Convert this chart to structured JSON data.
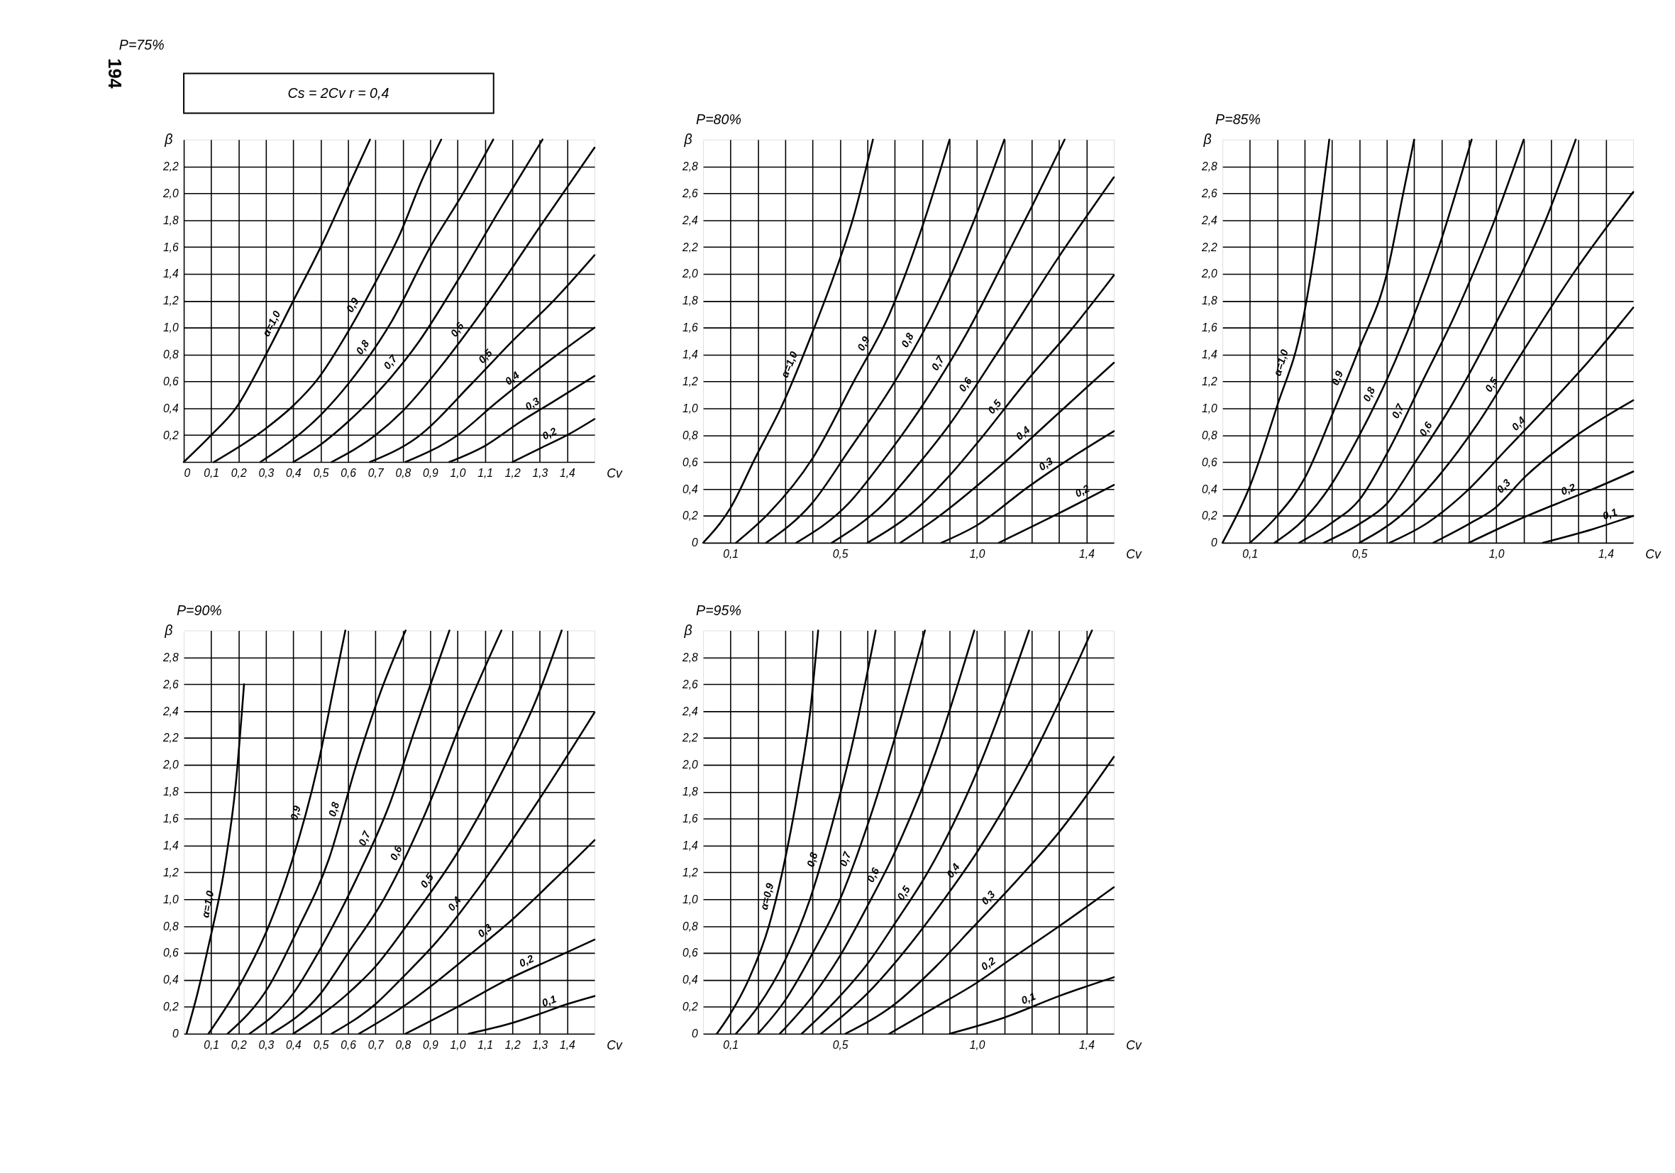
{
  "chart_data": [
    {
      "type": "line",
      "title": "P=75%",
      "xlabel": "Cv",
      "ylabel": "β",
      "annotations": [
        "194",
        "Cs = 2Cv      r = 0,4"
      ],
      "grid": true,
      "xlim": [
        0,
        1.5
      ],
      "ylim": [
        0,
        2.4
      ],
      "xticks": [
        {
          "value": 0,
          "label": "0"
        },
        {
          "value": 0.1,
          "label": "0,1"
        },
        {
          "value": 0.2,
          "label": "0,2"
        },
        {
          "value": 0.3,
          "label": "0,3"
        },
        {
          "value": 0.4,
          "label": "0,4"
        },
        {
          "value": 0.5,
          "label": "0,5"
        },
        {
          "value": 0.6,
          "label": "0,6"
        },
        {
          "value": 0.7,
          "label": "0,7"
        },
        {
          "value": 0.8,
          "label": "0,8"
        },
        {
          "value": 0.9,
          "label": "0,9"
        },
        {
          "value": 1.0,
          "label": "1,0"
        },
        {
          "value": 1.1,
          "label": "1,1"
        },
        {
          "value": 1.2,
          "label": "1,2"
        },
        {
          "value": 1.3,
          "label": "1,3"
        },
        {
          "value": 1.4,
          "label": "1,4"
        }
      ],
      "yticks": [
        {
          "value": 0,
          "label": null
        },
        {
          "value": 0.2,
          "label": "0,2"
        },
        {
          "value": 0.4,
          "label": "0,4"
        },
        {
          "value": 0.6,
          "label": "0,6"
        },
        {
          "value": 0.8,
          "label": "0,8"
        },
        {
          "value": 1.0,
          "label": "1,0"
        },
        {
          "value": 1.2,
          "label": "1,2"
        },
        {
          "value": 1.4,
          "label": "1,4"
        },
        {
          "value": 1.6,
          "label": "1,6"
        },
        {
          "value": 1.8,
          "label": "1,8"
        },
        {
          "value": 2.0,
          "label": "2,0"
        },
        {
          "value": 2.2,
          "label": "2,2"
        }
      ],
      "series": [
        {
          "name": "α=1,0",
          "color": "#000000",
          "x": [
            0,
            0.1,
            0.19,
            0.3,
            0.4,
            0.5,
            0.59,
            0.68
          ],
          "values": [
            0,
            0.2,
            0.4,
            0.8,
            1.2,
            1.6,
            2.0,
            2.4
          ]
        },
        {
          "name": "0,9",
          "color": "#000000",
          "x": [
            0.11,
            0.3,
            0.4,
            0.49,
            0.6,
            0.69,
            0.79,
            0.87,
            0.94
          ],
          "values": [
            0,
            0.25,
            0.42,
            0.62,
            0.97,
            1.3,
            1.7,
            2.1,
            2.4
          ]
        },
        {
          "name": "0,8",
          "color": "#000000",
          "x": [
            0.28,
            0.4,
            0.5,
            0.6,
            0.76,
            0.9,
            1.02,
            1.13
          ],
          "values": [
            0,
            0.17,
            0.35,
            0.58,
            1.05,
            1.6,
            2.0,
            2.4
          ]
        },
        {
          "name": "0,7",
          "color": "#000000",
          "x": [
            0.4,
            0.5,
            0.6,
            0.7,
            0.86,
            1.0,
            1.16,
            1.31
          ],
          "values": [
            0,
            0.13,
            0.3,
            0.5,
            0.9,
            1.35,
            1.9,
            2.4
          ]
        },
        {
          "name": "0,6",
          "color": "#000000",
          "x": [
            0.54,
            0.7,
            0.8,
            0.95,
            1.1,
            1.3,
            1.5
          ],
          "values": [
            0,
            0.2,
            0.38,
            0.74,
            1.15,
            1.75,
            2.34
          ]
        },
        {
          "name": "0,5",
          "color": "#000000",
          "x": [
            0.68,
            0.85,
            1.05,
            1.2,
            1.35,
            1.5
          ],
          "values": [
            0,
            0.18,
            0.58,
            0.9,
            1.2,
            1.54
          ]
        },
        {
          "name": "0,4",
          "color": "#000000",
          "x": [
            0.81,
            1.0,
            1.14,
            1.3,
            1.5
          ],
          "values": [
            0,
            0.2,
            0.44,
            0.7,
            1.0
          ]
        },
        {
          "name": "0,3",
          "color": "#000000",
          "x": [
            0.97,
            1.1,
            1.23,
            1.35,
            1.5
          ],
          "values": [
            0,
            0.12,
            0.3,
            0.45,
            0.64
          ]
        },
        {
          "name": "0,2",
          "color": "#000000",
          "x": [
            1.2,
            1.3,
            1.4,
            1.5
          ],
          "values": [
            0,
            0.1,
            0.2,
            0.32
          ]
        }
      ]
    },
    {
      "type": "line",
      "title": "P=80%",
      "xlabel": "Cv",
      "ylabel": "β",
      "grid": true,
      "xlim": [
        0,
        1.5
      ],
      "ylim": [
        0,
        3.0
      ],
      "xticks": [
        {
          "value": 0.1,
          "label": "0,1"
        },
        {
          "value": 0.2,
          "label": null
        },
        {
          "value": 0.3,
          "label": null
        },
        {
          "value": 0.4,
          "label": null
        },
        {
          "value": 0.5,
          "label": "0,5"
        },
        {
          "value": 0.6,
          "label": null
        },
        {
          "value": 0.7,
          "label": null
        },
        {
          "value": 0.8,
          "label": null
        },
        {
          "value": 0.9,
          "label": null
        },
        {
          "value": 1.0,
          "label": "1,0"
        },
        {
          "value": 1.1,
          "label": null
        },
        {
          "value": 1.2,
          "label": null
        },
        {
          "value": 1.3,
          "label": null
        },
        {
          "value": 1.4,
          "label": "1,4"
        }
      ],
      "yticks": [
        0,
        {
          "value": 0.2,
          "label": "0,2"
        },
        {
          "value": 0.4,
          "label": "0,4"
        },
        {
          "value": 0.6,
          "label": "0,6"
        },
        {
          "value": 0.8,
          "label": "0,8"
        },
        {
          "value": 1.0,
          "label": "1,0"
        },
        {
          "value": 1.2,
          "label": "1,2"
        },
        {
          "value": 1.4,
          "label": "1,4"
        },
        {
          "value": 1.6,
          "label": "1,6"
        },
        {
          "value": 1.8,
          "label": "1,8"
        },
        {
          "value": 2.0,
          "label": "2,0"
        },
        {
          "value": 2.2,
          "label": "2,2"
        },
        {
          "value": 2.4,
          "label": "2,4"
        },
        {
          "value": 2.6,
          "label": "2,6"
        },
        {
          "value": 2.8,
          "label": "2,8"
        }
      ],
      "series": [
        {
          "name": "α=1,0",
          "color": "#000000",
          "x": [
            0,
            0.1,
            0.19,
            0.29,
            0.4,
            0.48,
            0.55,
            0.62
          ],
          "values": [
            0,
            0.26,
            0.63,
            1.03,
            1.57,
            2.0,
            2.43,
            3.0
          ]
        },
        {
          "name": "0,9",
          "color": "#000000",
          "x": [
            0.12,
            0.24,
            0.4,
            0.55,
            0.68,
            0.8,
            0.9
          ],
          "values": [
            0,
            0.22,
            0.63,
            1.2,
            1.7,
            2.35,
            3.0
          ]
        },
        {
          "name": "0,8",
          "color": "#000000",
          "x": [
            0.23,
            0.4,
            0.53,
            0.7,
            0.85,
            0.98,
            1.1
          ],
          "values": [
            0,
            0.3,
            0.68,
            1.2,
            1.75,
            2.35,
            3.0
          ]
        },
        {
          "name": "0,7",
          "color": "#000000",
          "x": [
            0.34,
            0.53,
            0.66,
            0.81,
            0.96,
            1.1,
            1.2,
            1.32
          ],
          "values": [
            0,
            0.29,
            0.62,
            1.05,
            1.55,
            2.1,
            2.5,
            3.0
          ]
        },
        {
          "name": "0,6",
          "color": "#000000",
          "x": [
            0.47,
            0.66,
            0.78,
            0.9,
            1.07,
            1.29,
            1.5
          ],
          "values": [
            0,
            0.29,
            0.57,
            0.88,
            1.4,
            2.1,
            2.72
          ]
        },
        {
          "name": "0,5",
          "color": "#000000",
          "x": [
            0.6,
            0.75,
            0.9,
            1.0,
            1.18,
            1.35,
            1.5
          ],
          "values": [
            0,
            0.2,
            0.5,
            0.74,
            1.2,
            1.6,
            1.99
          ]
        },
        {
          "name": "0,4",
          "color": "#000000",
          "x": [
            0.72,
            0.85,
            1.09,
            1.29,
            1.5
          ],
          "values": [
            0,
            0.18,
            0.58,
            0.95,
            1.34
          ]
        },
        {
          "name": "0,3",
          "color": "#000000",
          "x": [
            0.87,
            1.0,
            1.19,
            1.35,
            1.5
          ],
          "values": [
            0,
            0.13,
            0.42,
            0.64,
            0.83
          ]
        },
        {
          "name": "0,2",
          "color": "#000000",
          "x": [
            1.08,
            1.3,
            1.5
          ],
          "values": [
            0,
            0.22,
            0.43
          ]
        }
      ]
    },
    {
      "type": "line",
      "title": "P=85%",
      "xlabel": "Cv",
      "ylabel": "β",
      "grid": true,
      "xlim": [
        0,
        1.5
      ],
      "ylim": [
        0,
        3.0
      ],
      "xticks": [
        {
          "value": 0.1,
          "label": "0,1"
        },
        {
          "value": 0.2,
          "label": null
        },
        {
          "value": 0.3,
          "label": null
        },
        {
          "value": 0.4,
          "label": null
        },
        {
          "value": 0.5,
          "label": "0,5"
        },
        {
          "value": 0.6,
          "label": null
        },
        {
          "value": 0.7,
          "label": null
        },
        {
          "value": 0.8,
          "label": null
        },
        {
          "value": 0.9,
          "label": null
        },
        {
          "value": 1.0,
          "label": "1,0"
        },
        {
          "value": 1.1,
          "label": null
        },
        {
          "value": 1.2,
          "label": null
        },
        {
          "value": 1.3,
          "label": null
        },
        {
          "value": 1.4,
          "label": "1,4"
        }
      ],
      "yticks": [
        0,
        {
          "value": 0.2,
          "label": "0,2"
        },
        {
          "value": 0.4,
          "label": "0,4"
        },
        {
          "value": 0.6,
          "label": "0,6"
        },
        {
          "value": 0.8,
          "label": "0,8"
        },
        {
          "value": 1.0,
          "label": "1,0"
        },
        {
          "value": 1.2,
          "label": "1,2"
        },
        {
          "value": 1.4,
          "label": "1,4"
        },
        {
          "value": 1.6,
          "label": "1,6"
        },
        {
          "value": 1.8,
          "label": "1,8"
        },
        {
          "value": 2.0,
          "label": "2,0"
        },
        {
          "value": 2.2,
          "label": "2,2"
        },
        {
          "value": 2.4,
          "label": "2,4"
        },
        {
          "value": 2.6,
          "label": "2,6"
        },
        {
          "value": 2.8,
          "label": "2,8"
        }
      ],
      "series": [
        {
          "name": "α=1,0",
          "color": "#000000",
          "x": [
            0,
            0.1,
            0.2,
            0.29,
            0.34,
            0.39
          ],
          "values": [
            0,
            0.42,
            1.02,
            1.62,
            2.22,
            3.0
          ]
        },
        {
          "name": "0,9",
          "color": "#000000",
          "x": [
            0.1,
            0.2,
            0.3,
            0.4,
            0.5,
            0.6,
            0.66,
            0.7
          ],
          "values": [
            0,
            0.2,
            0.48,
            0.95,
            1.45,
            2.0,
            2.6,
            3.0
          ]
        },
        {
          "name": "0,8",
          "color": "#000000",
          "x": [
            0.19,
            0.3,
            0.39,
            0.5,
            0.63,
            0.79,
            0.91
          ],
          "values": [
            0,
            0.18,
            0.41,
            0.8,
            1.35,
            2.2,
            3.0
          ]
        },
        {
          "name": "0,7",
          "color": "#000000",
          "x": [
            0.28,
            0.4,
            0.5,
            0.61,
            0.73,
            0.85,
            0.99,
            1.1
          ],
          "values": [
            0,
            0.15,
            0.32,
            0.7,
            1.2,
            1.7,
            2.38,
            3.0
          ]
        },
        {
          "name": "0,6",
          "color": "#000000",
          "x": [
            0.37,
            0.5,
            0.6,
            0.71,
            0.83,
            0.99,
            1.18,
            1.29
          ],
          "values": [
            0,
            0.14,
            0.29,
            0.62,
            1.0,
            1.6,
            2.4,
            3.0
          ]
        },
        {
          "name": "0,5",
          "color": "#000000",
          "x": [
            0.5,
            0.65,
            0.77,
            0.93,
            1.09,
            1.28,
            1.5
          ],
          "values": [
            0,
            0.2,
            0.45,
            0.88,
            1.4,
            2.0,
            2.61
          ]
        },
        {
          "name": "0,4",
          "color": "#000000",
          "x": [
            0.61,
            0.75,
            0.89,
            1.03,
            1.18,
            1.35,
            1.5
          ],
          "values": [
            0,
            0.15,
            0.38,
            0.68,
            1.0,
            1.38,
            1.75
          ]
        },
        {
          "name": "0,3",
          "color": "#000000",
          "x": [
            0.77,
            0.9,
            0.99,
            1.11,
            1.28,
            1.5
          ],
          "values": [
            0,
            0.14,
            0.25,
            0.5,
            0.78,
            1.06
          ]
        },
        {
          "name": "0,2",
          "color": "#000000",
          "x": [
            0.9,
            1.09,
            1.22,
            1.33,
            1.5
          ],
          "values": [
            0,
            0.18,
            0.29,
            0.38,
            0.53
          ]
        },
        {
          "name": "0,1",
          "color": "#000000",
          "x": [
            1.17,
            1.35,
            1.5
          ],
          "values": [
            0,
            0.1,
            0.2
          ]
        }
      ]
    },
    {
      "type": "line",
      "title": "P=90%",
      "xlabel": "Cv",
      "ylabel": "β",
      "grid": true,
      "xlim": [
        0,
        1.5
      ],
      "ylim": [
        0,
        3.0
      ],
      "xticks": [
        {
          "value": 0.1,
          "label": "0,1"
        },
        {
          "value": 0.2,
          "label": "0,2"
        },
        {
          "value": 0.3,
          "label": "0,3"
        },
        {
          "value": 0.4,
          "label": "0,4"
        },
        {
          "value": 0.5,
          "label": "0,5"
        },
        {
          "value": 0.6,
          "label": "0,6"
        },
        {
          "value": 0.7,
          "label": "0,7"
        },
        {
          "value": 0.8,
          "label": "0,8"
        },
        {
          "value": 0.9,
          "label": "0,9"
        },
        {
          "value": 1.0,
          "label": "1,0"
        },
        {
          "value": 1.1,
          "label": "1,1"
        },
        {
          "value": 1.2,
          "label": "1,2"
        },
        {
          "value": 1.3,
          "label": "1,3"
        },
        {
          "value": 1.4,
          "label": "1,4"
        }
      ],
      "yticks": [
        0,
        {
          "value": 0.2,
          "label": "0,2"
        },
        {
          "value": 0.4,
          "label": "0,4"
        },
        {
          "value": 0.6,
          "label": "0,6"
        },
        {
          "value": 0.8,
          "label": "0,8"
        },
        {
          "value": 1.0,
          "label": "1,0"
        },
        {
          "value": 1.2,
          "label": "1,2"
        },
        {
          "value": 1.4,
          "label": "1,4"
        },
        {
          "value": 1.6,
          "label": "1,6"
        },
        {
          "value": 1.8,
          "label": "1,8"
        },
        {
          "value": 2.0,
          "label": "2,0"
        },
        {
          "value": 2.2,
          "label": "2,2"
        },
        {
          "value": 2.4,
          "label": "2,4"
        },
        {
          "value": 2.6,
          "label": "2,6"
        },
        {
          "value": 2.8,
          "label": "2,8"
        }
      ],
      "series": [
        {
          "name": "α=1,0",
          "color": "#000000",
          "x": [
            0.01,
            0.05,
            0.09,
            0.15,
            0.19,
            0.22
          ],
          "values": [
            0,
            0.3,
            0.65,
            1.25,
            1.86,
            2.6
          ]
        },
        {
          "name": "0,9",
          "color": "#000000",
          "x": [
            0.09,
            0.22,
            0.31,
            0.39,
            0.49,
            0.55,
            0.59
          ],
          "values": [
            0,
            0.42,
            0.8,
            1.25,
            2.0,
            2.6,
            3.0
          ]
        },
        {
          "name": "0,8",
          "color": "#000000",
          "x": [
            0.16,
            0.31,
            0.41,
            0.53,
            0.63,
            0.72,
            0.81
          ],
          "values": [
            0,
            0.35,
            0.75,
            1.3,
            2.0,
            2.55,
            3.0
          ]
        },
        {
          "name": "0,7",
          "color": "#000000",
          "x": [
            0.24,
            0.4,
            0.49,
            0.63,
            0.75,
            0.85,
            0.97
          ],
          "values": [
            0,
            0.3,
            0.6,
            1.15,
            1.7,
            2.3,
            3.0
          ]
        },
        {
          "name": "0,6",
          "color": "#000000",
          "x": [
            0.32,
            0.5,
            0.6,
            0.73,
            0.88,
            1.03,
            1.16
          ],
          "values": [
            0,
            0.3,
            0.6,
            1.0,
            1.63,
            2.4,
            3.0
          ]
        },
        {
          "name": "0,5",
          "color": "#000000",
          "x": [
            0.4,
            0.6,
            0.7,
            0.83,
            1.0,
            1.15,
            1.29,
            1.38
          ],
          "values": [
            0,
            0.3,
            0.5,
            0.85,
            1.35,
            1.9,
            2.5,
            3.0
          ]
        },
        {
          "name": "0,4",
          "color": "#000000",
          "x": [
            0.54,
            0.7,
            0.8,
            0.93,
            1.1,
            1.3,
            1.5
          ],
          "values": [
            0,
            0.22,
            0.42,
            0.7,
            1.15,
            1.75,
            2.39
          ]
        },
        {
          "name": "0,3",
          "color": "#000000",
          "x": [
            0.64,
            0.8,
            0.9,
            1.04,
            1.2,
            1.35,
            1.5
          ],
          "values": [
            0,
            0.2,
            0.35,
            0.58,
            0.85,
            1.14,
            1.44
          ]
        },
        {
          "name": "0,2",
          "color": "#000000",
          "x": [
            0.81,
            1.0,
            1.18,
            1.35,
            1.5
          ],
          "values": [
            0,
            0.2,
            0.4,
            0.56,
            0.7
          ]
        },
        {
          "name": "0,1",
          "color": "#000000",
          "x": [
            1.04,
            1.2,
            1.29,
            1.4,
            1.5
          ],
          "values": [
            0,
            0.08,
            0.14,
            0.22,
            0.28
          ]
        }
      ]
    },
    {
      "type": "line",
      "title": "P=95%",
      "xlabel": "Cv",
      "ylabel": "β",
      "grid": true,
      "xlim": [
        0,
        1.5
      ],
      "ylim": [
        0,
        3.0
      ],
      "xticks": [
        {
          "value": 0.1,
          "label": "0,1"
        },
        {
          "value": 0.2,
          "label": null
        },
        {
          "value": 0.3,
          "label": null
        },
        {
          "value": 0.4,
          "label": null
        },
        {
          "value": 0.5,
          "label": "0,5"
        },
        {
          "value": 0.6,
          "label": null
        },
        {
          "value": 0.7,
          "label": null
        },
        {
          "value": 0.8,
          "label": null
        },
        {
          "value": 0.9,
          "label": null
        },
        {
          "value": 1.0,
          "label": "1,0"
        },
        {
          "value": 1.1,
          "label": null
        },
        {
          "value": 1.2,
          "label": null
        },
        {
          "value": 1.3,
          "label": null
        },
        {
          "value": 1.4,
          "label": "1,4"
        }
      ],
      "yticks": [
        0,
        {
          "value": 0.2,
          "label": "0,2"
        },
        {
          "value": 0.4,
          "label": "0,4"
        },
        {
          "value": 0.6,
          "label": "0,6"
        },
        {
          "value": 0.8,
          "label": "0,8"
        },
        {
          "value": 1.0,
          "label": "1,0"
        },
        {
          "value": 1.2,
          "label": "1,2"
        },
        {
          "value": 1.4,
          "label": "1,4"
        },
        {
          "value": 1.6,
          "label": "1,6"
        },
        {
          "value": 1.8,
          "label": "1,8"
        },
        {
          "value": 2.0,
          "label": "2,0"
        },
        {
          "value": 2.2,
          "label": "2,2"
        },
        {
          "value": 2.4,
          "label": "2,4"
        },
        {
          "value": 2.6,
          "label": "2,6"
        },
        {
          "value": 2.8,
          "label": "2,8"
        }
      ],
      "series": [
        {
          "name": "α=0,9",
          "color": "#000000",
          "x": [
            0.05,
            0.1,
            0.17,
            0.24,
            0.29,
            0.35,
            0.39,
            0.42
          ],
          "values": [
            0,
            0.15,
            0.42,
            0.8,
            1.21,
            1.85,
            2.38,
            3.0
          ]
        },
        {
          "name": "0,8",
          "color": "#000000",
          "x": [
            0.12,
            0.2,
            0.3,
            0.39,
            0.47,
            0.55,
            0.63
          ],
          "values": [
            0,
            0.2,
            0.55,
            1.0,
            1.55,
            2.2,
            3.0
          ]
        },
        {
          "name": "0,7",
          "color": "#000000",
          "x": [
            0.2,
            0.3,
            0.4,
            0.5,
            0.6,
            0.7,
            0.81
          ],
          "values": [
            0,
            0.25,
            0.6,
            1.0,
            1.55,
            2.2,
            3.0
          ]
        },
        {
          "name": "0,6",
          "color": "#000000",
          "x": [
            0.28,
            0.4,
            0.5,
            0.6,
            0.7,
            0.85,
            0.99
          ],
          "values": [
            0,
            0.28,
            0.58,
            0.95,
            1.35,
            2.1,
            3.0
          ]
        },
        {
          "name": "0,5",
          "color": "#000000",
          "x": [
            0.36,
            0.5,
            0.6,
            0.7,
            0.82,
            1.0,
            1.19
          ],
          "values": [
            0,
            0.28,
            0.52,
            0.82,
            1.2,
            1.95,
            3.0
          ]
        },
        {
          "name": "0,4",
          "color": "#000000",
          "x": [
            0.43,
            0.6,
            0.75,
            0.88,
            1.0,
            1.2,
            1.42
          ],
          "values": [
            0,
            0.3,
            0.65,
            1.0,
            1.35,
            2.05,
            3.0
          ]
        },
        {
          "name": "0,3",
          "color": "#000000",
          "x": [
            0.52,
            0.7,
            0.85,
            0.98,
            1.15,
            1.3,
            1.5
          ],
          "values": [
            0,
            0.22,
            0.5,
            0.78,
            1.15,
            1.5,
            2.06
          ]
        },
        {
          "name": "0,2",
          "color": "#000000",
          "x": [
            0.68,
            0.85,
            1.0,
            1.12,
            1.3,
            1.5
          ],
          "values": [
            0,
            0.2,
            0.38,
            0.55,
            0.8,
            1.09
          ]
        },
        {
          "name": "0,1",
          "color": "#000000",
          "x": [
            0.9,
            1.1,
            1.3,
            1.5
          ],
          "values": [
            0,
            0.12,
            0.28,
            0.42
          ]
        }
      ]
    }
  ]
}
